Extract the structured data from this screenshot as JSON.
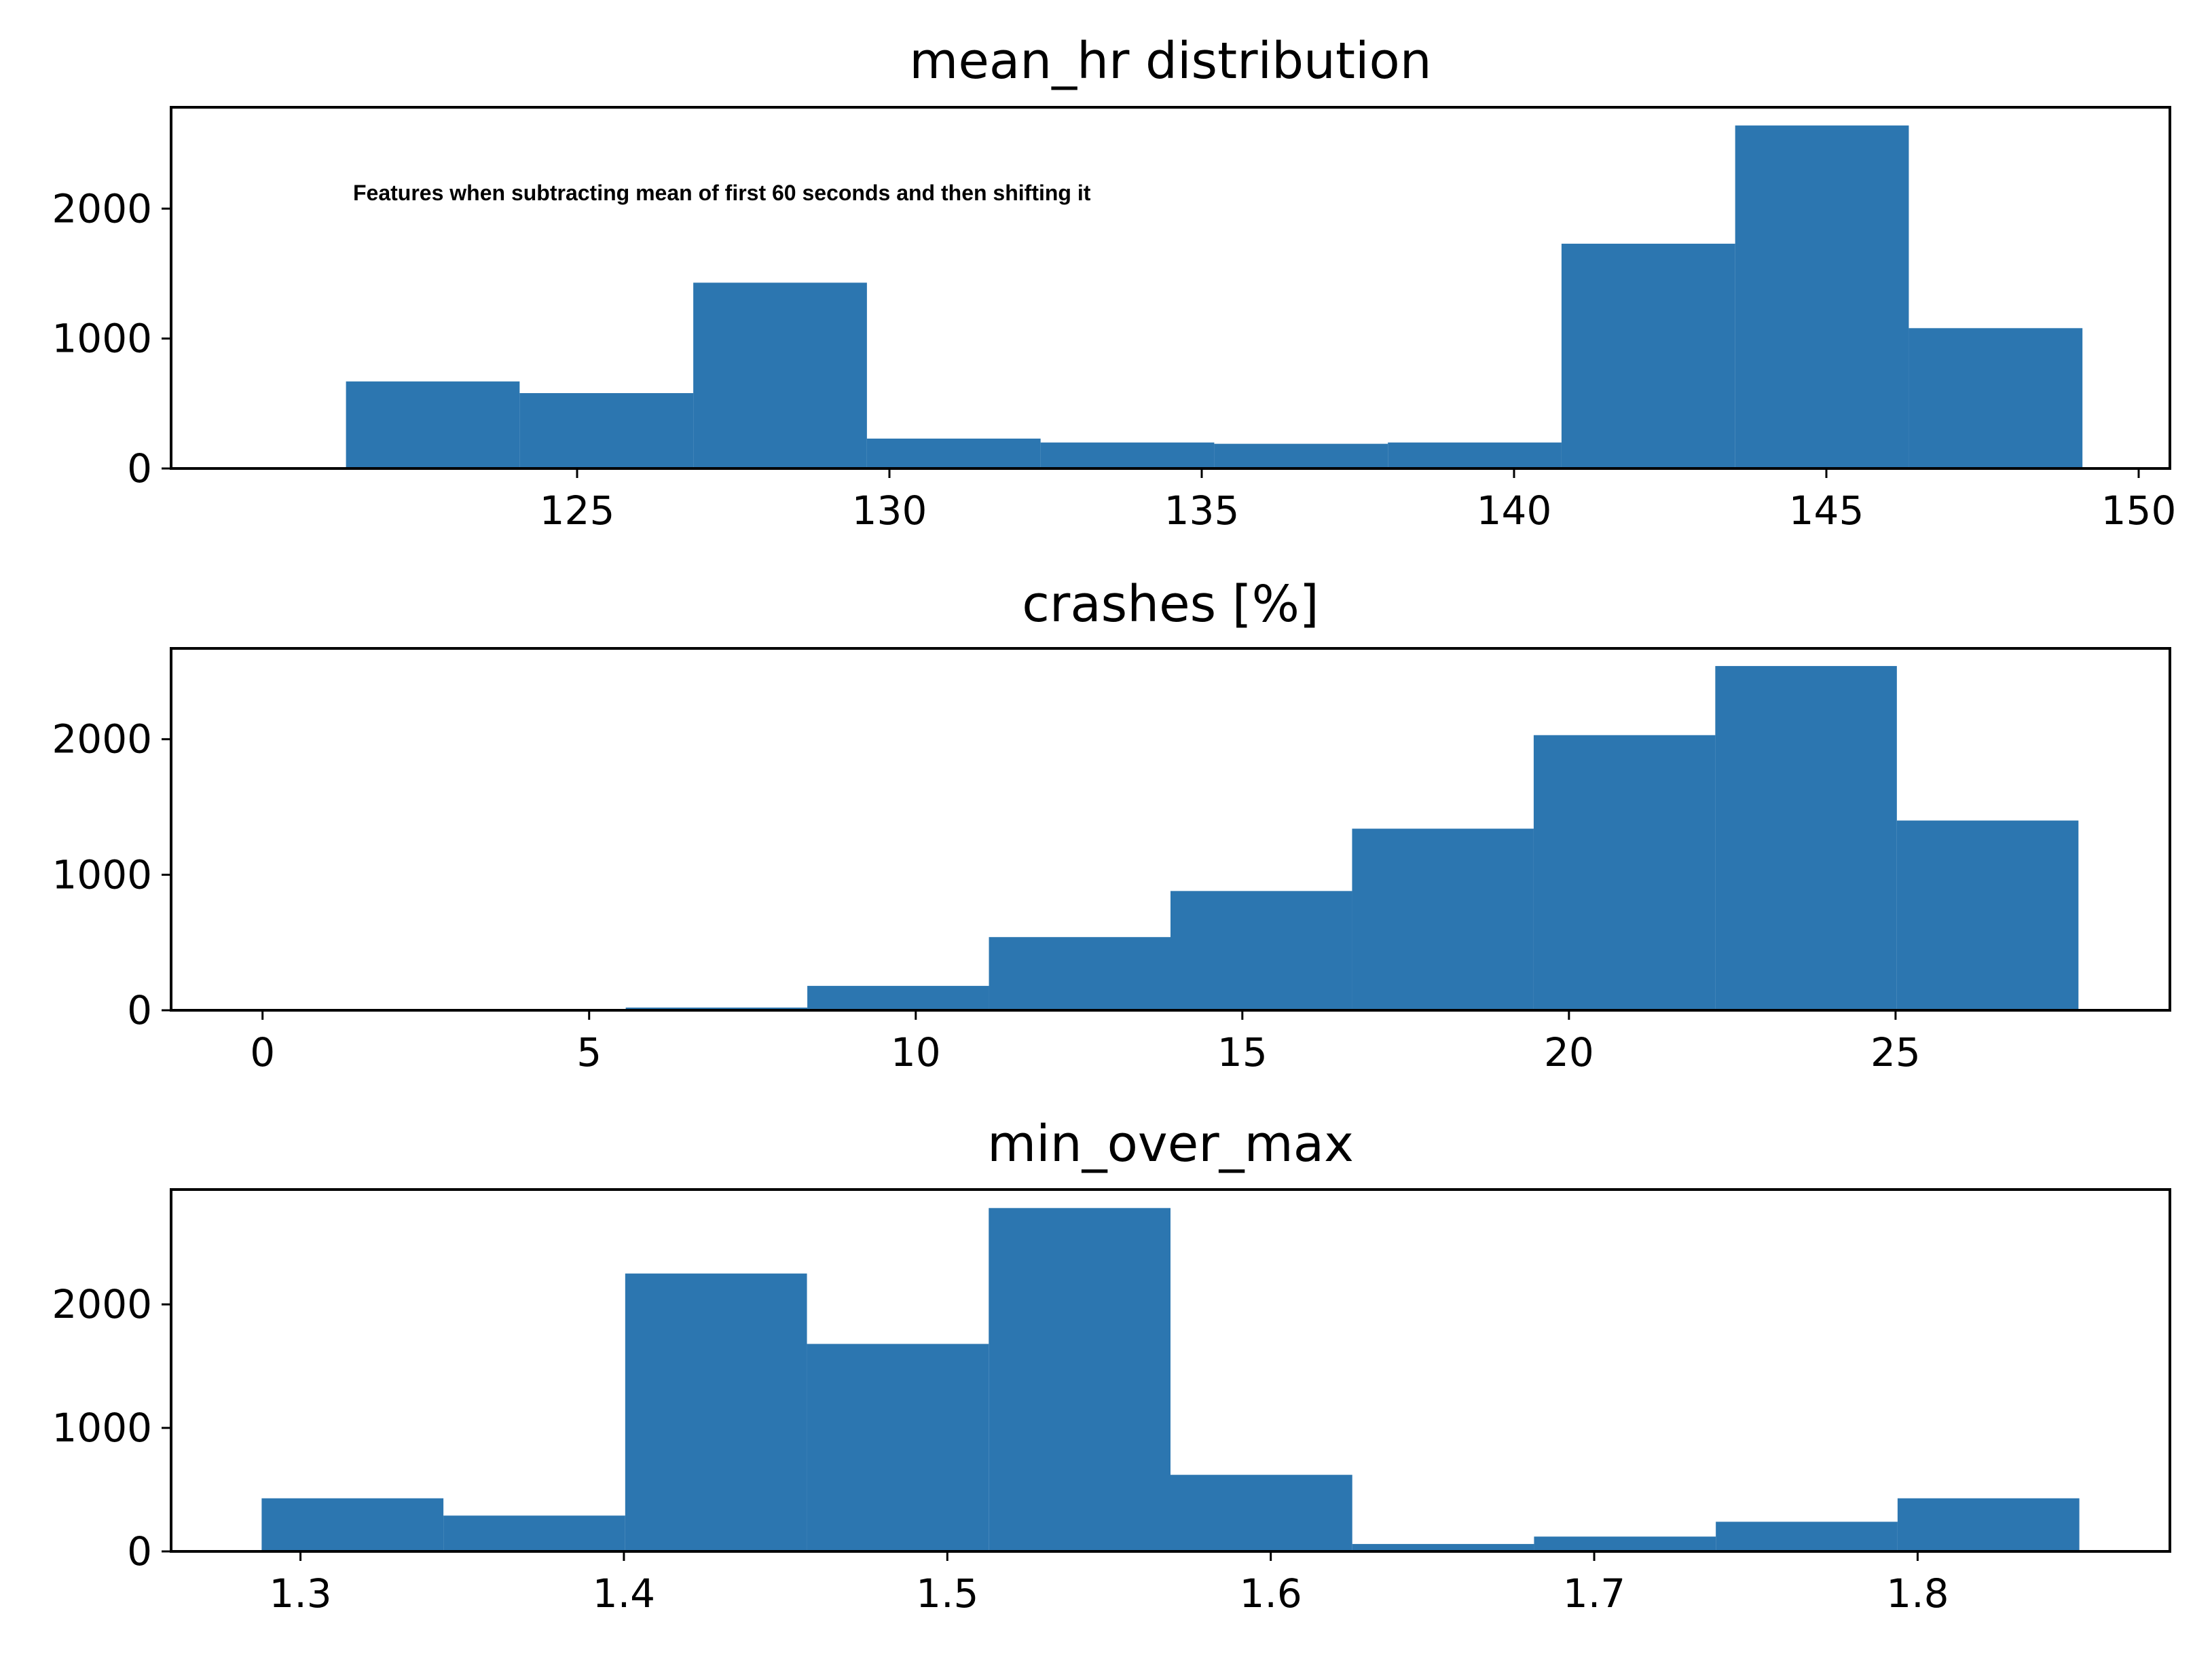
{
  "chart_data": [
    {
      "type": "bar",
      "title": "mean_hr distribution",
      "annotation": "Features when subtracting mean of first 60 seconds and then shifting it",
      "bin_edges": [
        121.3,
        124.08,
        126.86,
        129.64,
        132.42,
        135.2,
        137.98,
        140.76,
        143.54,
        146.32,
        149.1
      ],
      "values": [
        670,
        580,
        1430,
        230,
        200,
        190,
        200,
        1730,
        2640,
        1080
      ],
      "xlim": [
        118.5,
        150.5
      ],
      "ylim": [
        0,
        2780
      ],
      "xticks": [
        125,
        130,
        135,
        140,
        145,
        150
      ],
      "xtick_labels": [
        "125",
        "130",
        "135",
        "140",
        "145",
        "150"
      ],
      "yticks": [
        0,
        1000,
        2000
      ],
      "ytick_labels": [
        "0",
        "1000",
        "2000"
      ],
      "color": "#2c76b0"
    },
    {
      "type": "bar",
      "title": "crashes [%]",
      "bin_edges": [
        0,
        2.78,
        5.56,
        8.34,
        11.12,
        13.9,
        16.68,
        19.46,
        22.24,
        25.02,
        27.8
      ],
      "values": [
        0,
        0,
        20,
        180,
        540,
        880,
        1340,
        2030,
        2540,
        1400
      ],
      "xlim": [
        -1.4,
        29.2
      ],
      "ylim": [
        0,
        2670
      ],
      "xticks": [
        0,
        5,
        10,
        15,
        20,
        25
      ],
      "xtick_labels": [
        "0",
        "5",
        "10",
        "15",
        "20",
        "25"
      ],
      "yticks": [
        0,
        1000,
        2000
      ],
      "ytick_labels": [
        "0",
        "1000",
        "2000"
      ],
      "color": "#2c76b0"
    },
    {
      "type": "bar",
      "title": "min_over_max",
      "bin_edges": [
        1.288,
        1.3442,
        1.4004,
        1.4566,
        1.5128,
        1.569,
        1.6252,
        1.6814,
        1.7376,
        1.7938,
        1.85
      ],
      "values": [
        430,
        290,
        2250,
        1680,
        2780,
        620,
        60,
        120,
        240,
        430
      ],
      "xlim": [
        1.26,
        1.878
      ],
      "ylim": [
        0,
        2930
      ],
      "xticks": [
        1.3,
        1.4,
        1.5,
        1.6,
        1.7,
        1.8
      ],
      "xtick_labels": [
        "1.3",
        "1.4",
        "1.5",
        "1.6",
        "1.7",
        "1.8"
      ],
      "yticks": [
        0,
        1000,
        2000
      ],
      "ytick_labels": [
        "0",
        "1000",
        "2000"
      ],
      "color": "#2c76b0"
    }
  ]
}
